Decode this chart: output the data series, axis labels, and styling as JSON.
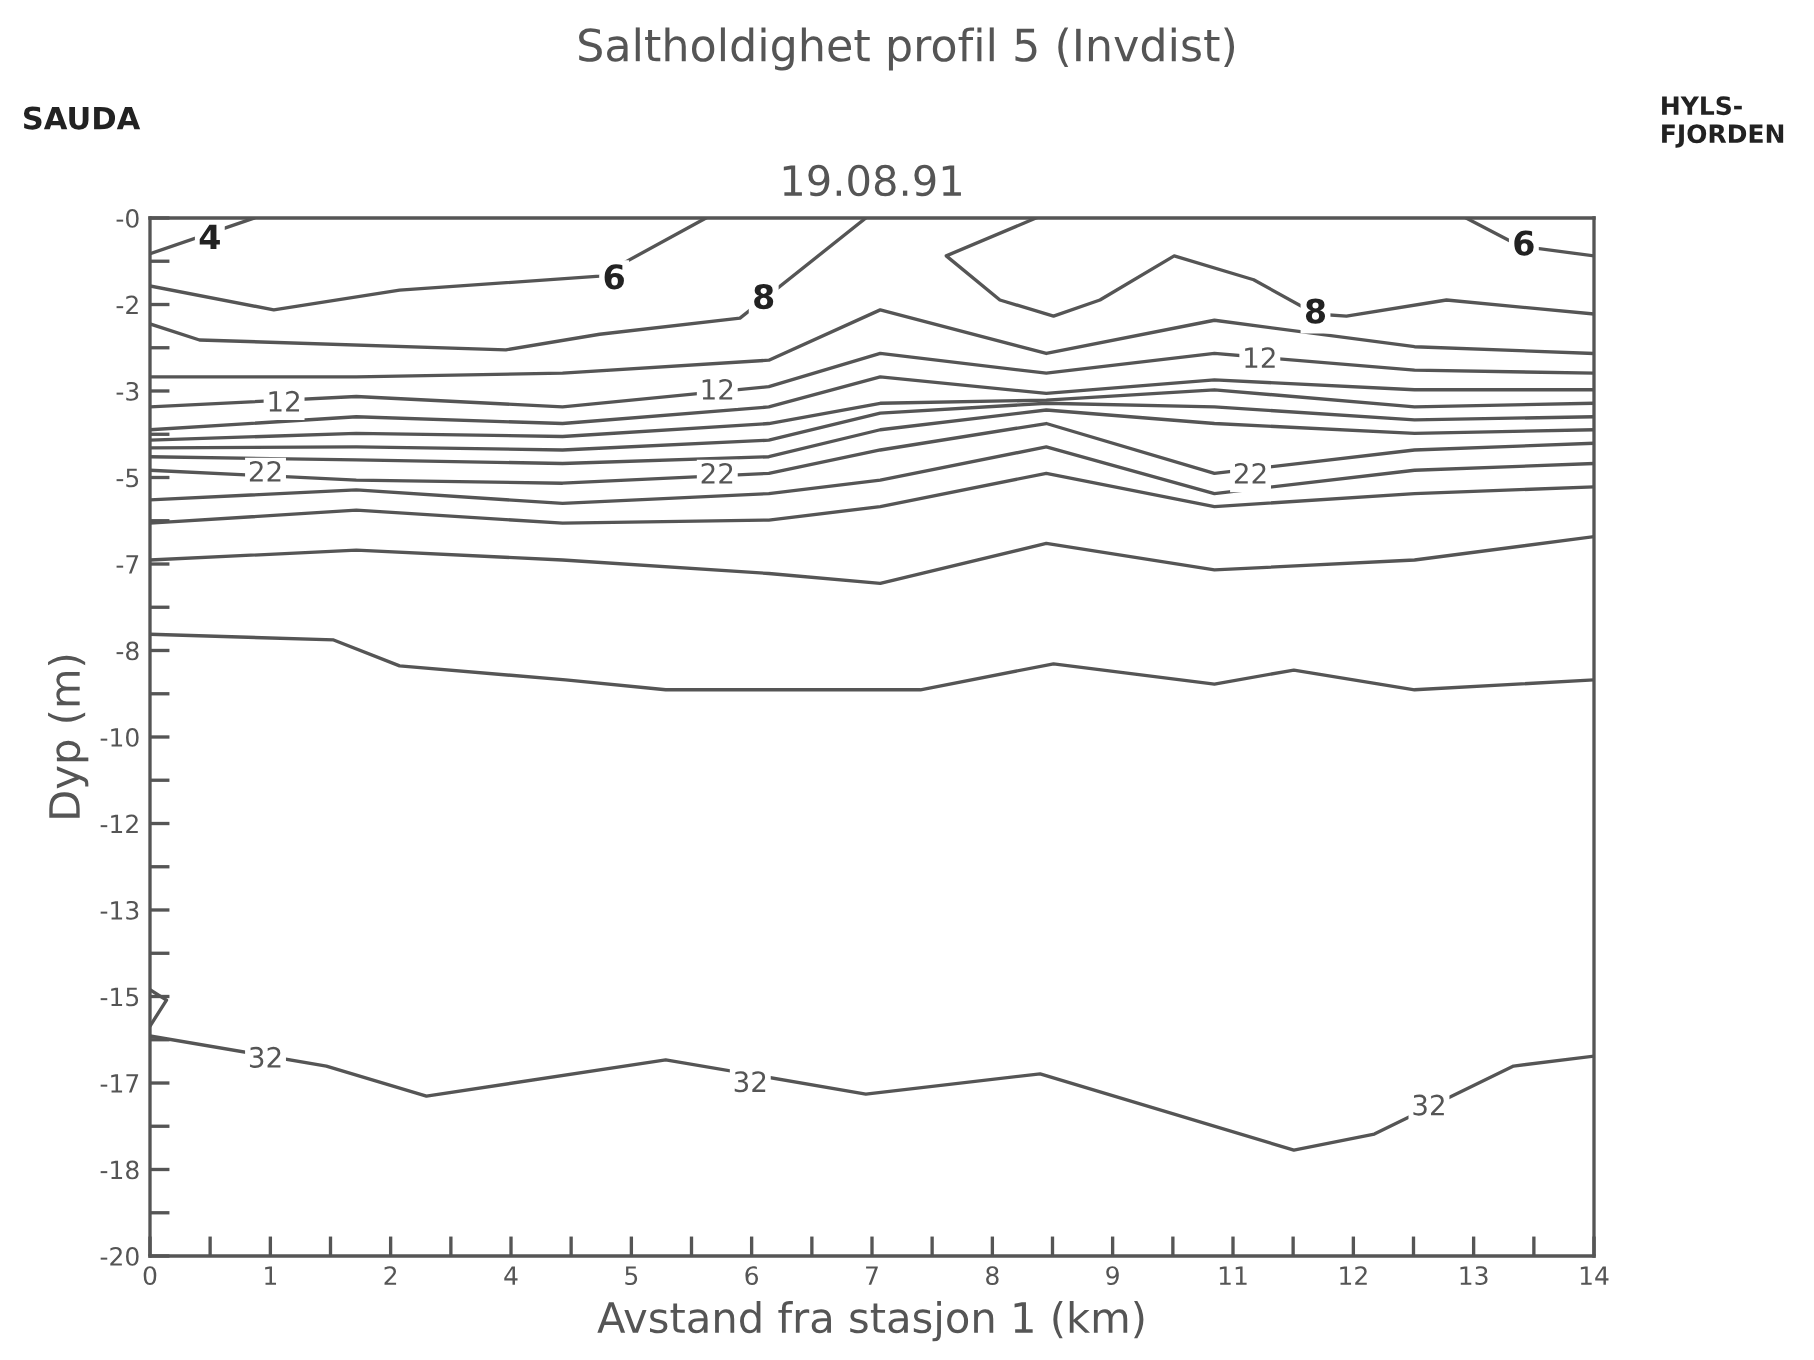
{
  "chart_data": {
    "type": "line",
    "title": "Saltholdighet profil 5 (Invdist)",
    "subtitle": "19.08.91",
    "xlabel": "Avstand fra stasjon 1 (km)",
    "ylabel": "Dyp (m)",
    "xlim": [
      0,
      14
    ],
    "ylim": [
      -20,
      0
    ],
    "xticks": [
      0,
      {
        "value": 0.583,
        "label": null
      },
      {
        "value": 1.167,
        "label": "1"
      },
      {
        "value": 1.75,
        "label": null
      },
      {
        "value": 2.333,
        "label": "2"
      },
      {
        "value": 2.917,
        "label": null
      },
      {
        "value": 3.5,
        "label": "4"
      },
      {
        "value": 4.083,
        "label": null
      },
      {
        "value": 4.667,
        "label": "5"
      },
      {
        "value": 5.25,
        "label": null
      },
      {
        "value": 5.833,
        "label": "6"
      },
      {
        "value": 6.417,
        "label": null
      },
      7,
      {
        "value": 7.583,
        "label": null
      },
      {
        "value": 8.167,
        "label": "8"
      },
      {
        "value": 8.75,
        "label": null
      },
      {
        "value": 9.333,
        "label": "9"
      },
      {
        "value": 9.917,
        "label": null
      },
      {
        "value": 10.5,
        "label": "11"
      },
      {
        "value": 11.083,
        "label": null
      },
      {
        "value": 11.667,
        "label": "12"
      },
      {
        "value": 12.25,
        "label": null
      },
      {
        "value": 12.833,
        "label": "13"
      },
      {
        "value": 13.417,
        "label": null
      },
      14
    ],
    "yticks": [
      {
        "value": 0,
        "label": "-0"
      },
      {
        "value": -0.833,
        "label": null
      },
      {
        "value": -1.667,
        "label": "-2"
      },
      {
        "value": -2.5,
        "label": null
      },
      {
        "value": -3.333,
        "label": "-3"
      },
      {
        "value": -4.167,
        "label": null
      },
      -5,
      {
        "value": -5.833,
        "label": null
      },
      {
        "value": -6.667,
        "label": "-7"
      },
      {
        "value": -7.5,
        "label": null
      },
      {
        "value": -8.333,
        "label": "-8"
      },
      {
        "value": -9.167,
        "label": null
      },
      -10,
      {
        "value": -10.833,
        "label": null
      },
      {
        "value": -11.667,
        "label": "-12"
      },
      {
        "value": -12.5,
        "label": null
      },
      {
        "value": -13.333,
        "label": "-13"
      },
      {
        "value": -14.167,
        "label": null
      },
      -15,
      {
        "value": -15.833,
        "label": null
      },
      {
        "value": -16.667,
        "label": "-17"
      },
      {
        "value": -17.5,
        "label": null
      },
      {
        "value": -18.333,
        "label": "-18"
      },
      {
        "value": -19.167,
        "label": null
      },
      -20
    ],
    "grid": false,
    "legend": false,
    "marker": "none",
    "line_style": "solid",
    "series": [
      {
        "color": "#555555",
        "x": [
          0,
          1.01
        ],
        "values": [
          -0.69,
          0
        ]
      },
      {
        "color": "#555555",
        "x": [
          0,
          1.2,
          2.42,
          4.36,
          5.39
        ],
        "values": [
          -1.31,
          -1.77,
          -1.39,
          -1.12,
          0
        ]
      },
      {
        "color": "#555555",
        "x": [
          12.76,
          13.28,
          14
        ],
        "values": [
          0,
          -0.54,
          -0.73
        ]
      },
      {
        "color": "#555555",
        "x": [
          0,
          0.48,
          3.45,
          4.36,
          5.72,
          6.94
        ],
        "values": [
          -2.04,
          -2.35,
          -2.54,
          -2.24,
          -1.93,
          0
        ]
      },
      {
        "color": "#555555",
        "x": [
          8.59,
          7.72,
          8.24,
          8.76,
          9.21,
          9.93,
          10.7,
          11.3,
          11.6,
          12.57,
          14
        ],
        "values": [
          0,
          -0.73,
          -1.58,
          -1.89,
          -1.58,
          -0.73,
          -1.19,
          -1.85,
          -1.89,
          -1.58,
          -1.85
        ]
      },
      {
        "color": "#555555",
        "x": [
          0,
          2,
          4,
          6,
          7.08,
          8.69,
          10.32,
          12.26,
          14
        ],
        "values": [
          -3.06,
          -3.06,
          -2.99,
          -2.74,
          -1.77,
          -2.61,
          -1.97,
          -2.48,
          -2.61
        ]
      },
      {
        "color": "#555555",
        "x": [
          0,
          2,
          4,
          6,
          7.08,
          8.69,
          10.32,
          12.26,
          14
        ],
        "values": [
          -3.64,
          -3.44,
          -3.64,
          -3.25,
          -2.61,
          -2.99,
          -2.61,
          -2.93,
          -2.99
        ]
      },
      {
        "color": "#555555",
        "x": [
          0,
          2,
          4,
          6,
          7.08,
          8.69,
          10.32,
          12.26,
          14
        ],
        "values": [
          -4.08,
          -3.83,
          -3.96,
          -3.64,
          -3.06,
          -3.38,
          -3.12,
          -3.31,
          -3.31
        ]
      },
      {
        "color": "#555555",
        "x": [
          0,
          2,
          4,
          6,
          7.08,
          8.69,
          10.32,
          12.26,
          14
        ],
        "values": [
          -4.28,
          -4.15,
          -4.21,
          -3.96,
          -3.57,
          -3.51,
          -3.31,
          -3.64,
          -3.57
        ]
      },
      {
        "color": "#555555",
        "x": [
          0,
          2,
          4,
          6,
          7.08,
          8.69,
          10.32,
          12.26,
          14
        ],
        "values": [
          -4.43,
          -4.41,
          -4.47,
          -4.28,
          -3.76,
          -3.57,
          -3.64,
          -3.89,
          -3.83
        ]
      },
      {
        "color": "#555555",
        "x": [
          0,
          2,
          4,
          6,
          7.08,
          8.69,
          10.32,
          12.26,
          14
        ],
        "values": [
          -4.6,
          -4.66,
          -4.73,
          -4.6,
          -4.08,
          -3.7,
          -3.96,
          -4.15,
          -4.08
        ]
      },
      {
        "color": "#555555",
        "x": [
          0,
          2,
          4,
          6,
          7.08,
          8.69,
          10.32,
          12.26,
          14
        ],
        "values": [
          -4.86,
          -5.05,
          -5.11,
          -4.92,
          -4.47,
          -3.96,
          -4.92,
          -4.47,
          -4.34
        ]
      },
      {
        "color": "#555555",
        "x": [
          0,
          2,
          4,
          6,
          7.08,
          8.69,
          10.32,
          12.26,
          14
        ],
        "values": [
          -5.43,
          -5.24,
          -5.5,
          -5.31,
          -5.05,
          -4.41,
          -5.31,
          -4.86,
          -4.73
        ]
      },
      {
        "color": "#555555",
        "x": [
          0,
          2,
          4,
          6,
          7.08,
          8.69,
          10.32,
          12.26,
          14
        ],
        "values": [
          -5.88,
          -5.63,
          -5.88,
          -5.82,
          -5.56,
          -4.92,
          -5.56,
          -5.31,
          -5.18
        ]
      },
      {
        "color": "#555555",
        "x": [
          0,
          2,
          4,
          6,
          7.08,
          8.69,
          10.32,
          12.26,
          14
        ],
        "values": [
          -6.59,
          -6.4,
          -6.59,
          -6.85,
          -7.04,
          -6.27,
          -6.78,
          -6.59,
          -6.14
        ]
      },
      {
        "color": "#555555",
        "x": [
          0,
          1.78,
          2.42,
          4.03,
          5.0,
          7.47,
          8.76,
          10.32,
          11.09,
          12.26,
          14
        ],
        "values": [
          -8.02,
          -8.13,
          -8.63,
          -8.9,
          -9.09,
          -9.09,
          -8.59,
          -8.98,
          -8.71,
          -9.09,
          -8.9
        ]
      },
      {
        "color": "#555555",
        "x": [
          0,
          0.16,
          0
        ],
        "values": [
          -14.87,
          -15.07,
          -15.57
        ]
      },
      {
        "color": "#555555",
        "x": [
          0,
          1.71,
          2.68,
          5.0,
          6.94,
          8.63,
          11.09,
          11.87,
          13.22,
          14
        ],
        "values": [
          -15.76,
          -16.34,
          -16.92,
          -16.22,
          -16.88,
          -16.49,
          -17.96,
          -17.65,
          -16.34,
          -16.15
        ]
      }
    ],
    "annotations": [
      "SAUDA",
      "HYLS-\nFJORDEN",
      {
        "text": "4",
        "x": 0.58,
        "y": -0.42
      },
      {
        "text": "6",
        "x": 4.5,
        "y": -1.19
      },
      {
        "text": "8",
        "x": 5.95,
        "y": -1.57
      },
      {
        "text": "6",
        "x": 13.32,
        "y": -0.54
      },
      {
        "text": "8",
        "x": 11.3,
        "y": -1.85
      },
      {
        "text": "12",
        "x": 1.3,
        "y": -3.58
      },
      {
        "text": "12",
        "x": 5.5,
        "y": -3.35
      },
      {
        "text": "12",
        "x": 10.76,
        "y": -2.74
      },
      {
        "text": "22",
        "x": 1.12,
        "y": -4.93
      },
      {
        "text": "22",
        "x": 5.5,
        "y": -4.97
      },
      {
        "text": "22",
        "x": 10.67,
        "y": -4.97
      },
      {
        "text": "32",
        "x": 1.12,
        "y": -16.22
      },
      {
        "text": "32",
        "x": 5.82,
        "y": -16.69
      },
      {
        "text": "32",
        "x": 12.4,
        "y": -17.14
      }
    ]
  }
}
